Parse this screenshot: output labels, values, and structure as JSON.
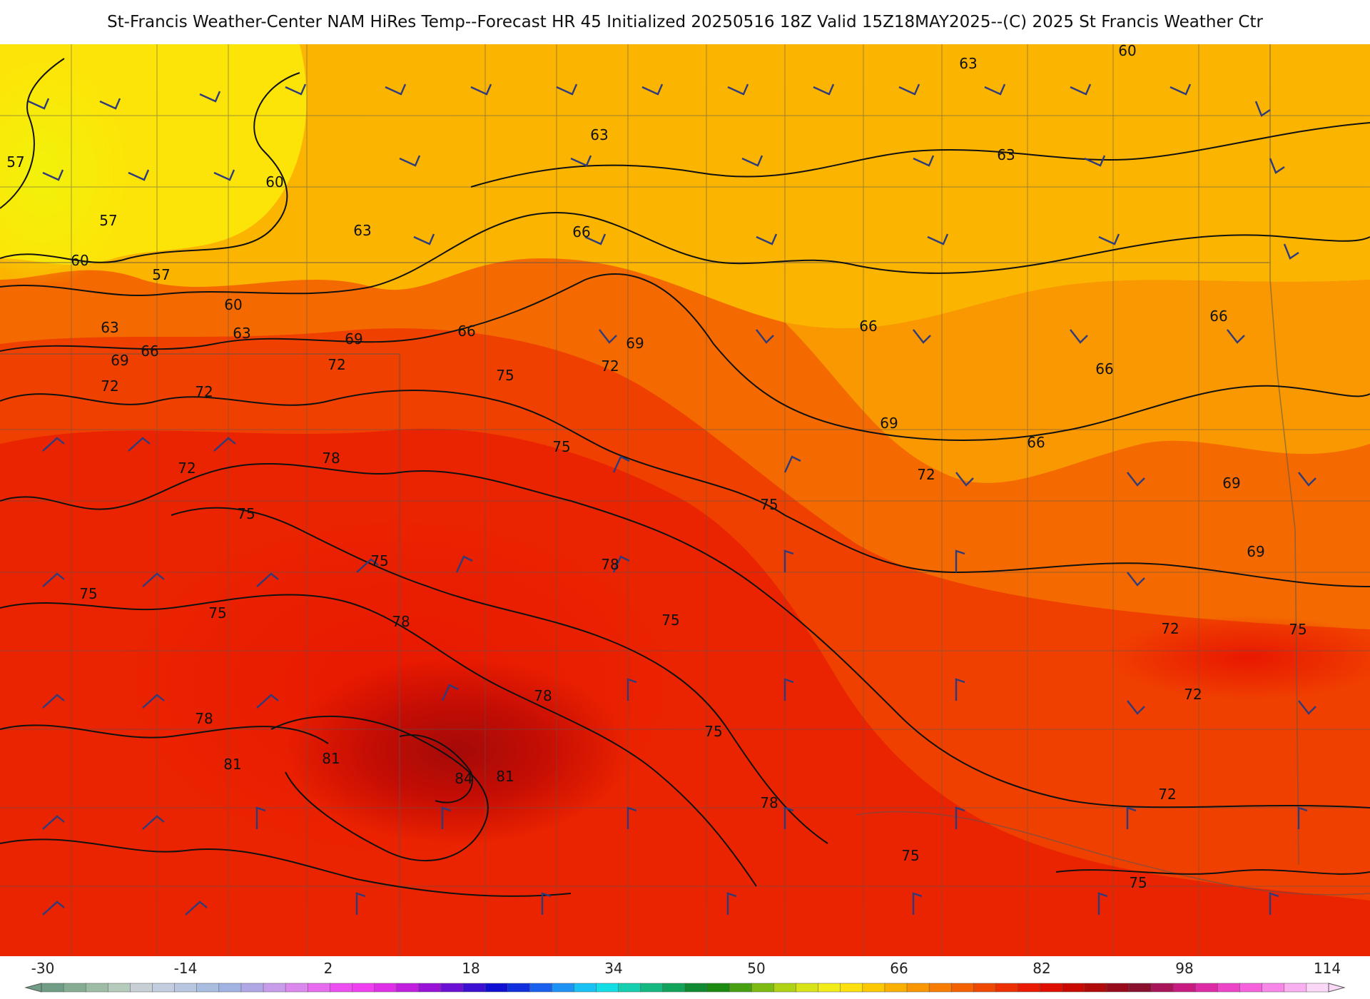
{
  "header": {
    "title": "St-Francis Weather-Center NAM HiRes Temp--Forecast HR 45 Initialized 20250516 18Z Valid 15Z18MAY2025--(C) 2025 St Francis Weather Ctr"
  },
  "map": {
    "variable": "2m temperature",
    "units": "°F",
    "contour_labels": [
      "57",
      "57",
      "57",
      "60",
      "60",
      "60",
      "60",
      "63",
      "63",
      "63",
      "63",
      "63",
      "63",
      "66",
      "66",
      "66",
      "66",
      "66",
      "66",
      "66",
      "69",
      "69",
      "69",
      "69",
      "69",
      "69",
      "72",
      "72",
      "72",
      "72",
      "72",
      "72",
      "72",
      "72",
      "72",
      "75",
      "75",
      "75",
      "75",
      "75",
      "75",
      "75",
      "75",
      "75",
      "75",
      "75",
      "75",
      "78",
      "78",
      "78",
      "78",
      "78",
      "78",
      "81",
      "81",
      "81",
      "84"
    ]
  },
  "colorbar": {
    "ticks": [
      "-30",
      "-14",
      "2",
      "18",
      "34",
      "50",
      "66",
      "82",
      "98",
      "114"
    ],
    "min": -30,
    "max": 114,
    "colors": [
      "#6f9d85",
      "#86ad93",
      "#9cbca6",
      "#b5cbbb",
      "#c8d0d6",
      "#c3cde0",
      "#b8c6e0",
      "#a9bde0",
      "#a0b3e2",
      "#b0a8e6",
      "#c89ceb",
      "#dd88ee",
      "#e86cf0",
      "#ee4ff2",
      "#f03ff2",
      "#e02fe8",
      "#c21ee0",
      "#9a12d8",
      "#6a10d4",
      "#3b10d2",
      "#1010d2",
      "#1030e0",
      "#1a60ee",
      "#1f92f5",
      "#19c2f5",
      "#15dde6",
      "#15d0b0",
      "#15b880",
      "#11a35a",
      "#108a30",
      "#1a8a10",
      "#46a010",
      "#7dba12",
      "#b0d214",
      "#d8e318",
      "#f4ec18",
      "#fde010",
      "#fcc800",
      "#fbb000",
      "#f99600",
      "#f77c00",
      "#f46100",
      "#f04800",
      "#ec3000",
      "#e91a00",
      "#de0f00",
      "#c80a00",
      "#b00a0a",
      "#960a1a",
      "#8a1030",
      "#a81558",
      "#c81a80",
      "#dd2aa5",
      "#ee45c8",
      "#f562dc",
      "#f887e8",
      "#fab0f0",
      "#fcd8f8"
    ]
  }
}
